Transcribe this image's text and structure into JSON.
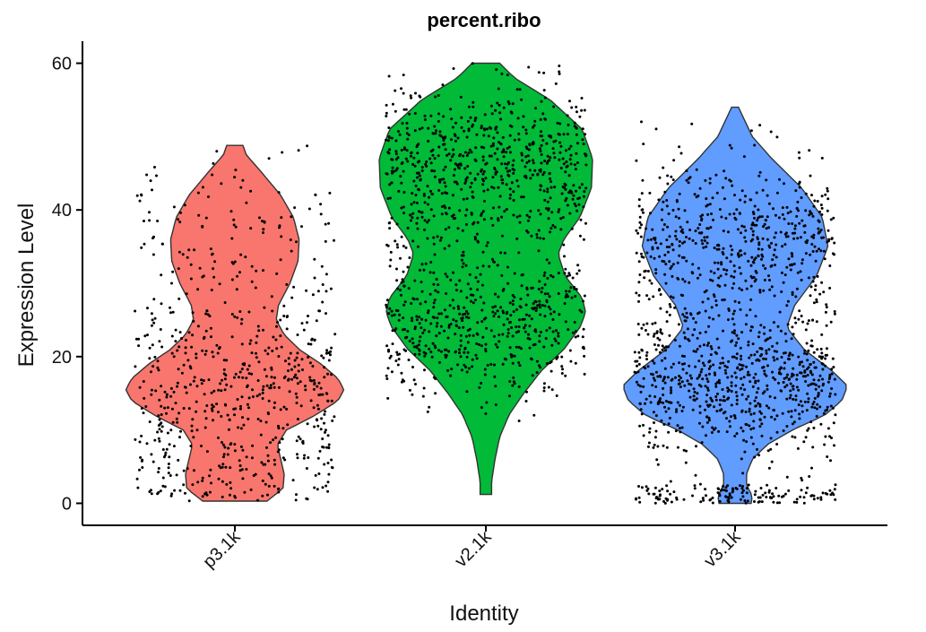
{
  "chart_data": {
    "type": "violin",
    "title": "percent.ribo",
    "xlabel": "Identity",
    "ylabel": "Expression Level",
    "ylim": [
      -3,
      63
    ],
    "yticks": [
      0,
      20,
      40,
      60
    ],
    "categories": [
      "p3.1k",
      "v2.1k",
      "v3.1k"
    ],
    "colors": [
      "#F8766D",
      "#00BA38",
      "#619CFF"
    ],
    "grid": false,
    "legend": "none",
    "series": [
      {
        "category": "p3.1k",
        "range": [
          0.3,
          48.8
        ],
        "density": [
          [
            0.3,
            0.28
          ],
          [
            2,
            0.42
          ],
          [
            4,
            0.43
          ],
          [
            6,
            0.4
          ],
          [
            8,
            0.37
          ],
          [
            10,
            0.45
          ],
          [
            12,
            0.7
          ],
          [
            14,
            0.9
          ],
          [
            15.5,
            0.95
          ],
          [
            17,
            0.9
          ],
          [
            19,
            0.75
          ],
          [
            21,
            0.56
          ],
          [
            23,
            0.43
          ],
          [
            25,
            0.36
          ],
          [
            27,
            0.38
          ],
          [
            30,
            0.48
          ],
          [
            33,
            0.55
          ],
          [
            36,
            0.56
          ],
          [
            39,
            0.51
          ],
          [
            42,
            0.4
          ],
          [
            45,
            0.24
          ],
          [
            47.5,
            0.1
          ],
          [
            48.8,
            0.07
          ]
        ],
        "n_points": 700,
        "point_mix": [
          [
            0.6,
            16,
            6
          ],
          [
            0.2,
            4,
            3
          ],
          [
            0.2,
            36,
            6
          ]
        ]
      },
      {
        "category": "v2.1k",
        "range": [
          1.2,
          60
        ],
        "density": [
          [
            1.2,
            0.05
          ],
          [
            3,
            0.05
          ],
          [
            6,
            0.08
          ],
          [
            9,
            0.12
          ],
          [
            12,
            0.2
          ],
          [
            15,
            0.33
          ],
          [
            18,
            0.48
          ],
          [
            21,
            0.68
          ],
          [
            24,
            0.82
          ],
          [
            26,
            0.87
          ],
          [
            28,
            0.84
          ],
          [
            31,
            0.69
          ],
          [
            34,
            0.63
          ],
          [
            36,
            0.68
          ],
          [
            39,
            0.82
          ],
          [
            43,
            0.92
          ],
          [
            47,
            0.93
          ],
          [
            51,
            0.84
          ],
          [
            55,
            0.56
          ],
          [
            58,
            0.25
          ],
          [
            60,
            0.12
          ]
        ],
        "n_points": 1200,
        "point_mix": [
          [
            0.45,
            24,
            5
          ],
          [
            0.55,
            46,
            6
          ]
        ]
      },
      {
        "category": "v3.1k",
        "range": [
          0,
          54
        ],
        "density": [
          [
            0,
            0.14
          ],
          [
            1,
            0.15
          ],
          [
            2.5,
            0.1
          ],
          [
            4,
            0.1
          ],
          [
            6,
            0.15
          ],
          [
            8,
            0.28
          ],
          [
            10,
            0.5
          ],
          [
            12,
            0.78
          ],
          [
            14,
            0.93
          ],
          [
            16,
            0.98
          ],
          [
            18,
            0.85
          ],
          [
            21,
            0.6
          ],
          [
            24,
            0.45
          ],
          [
            27,
            0.52
          ],
          [
            31,
            0.71
          ],
          [
            35,
            0.81
          ],
          [
            39,
            0.76
          ],
          [
            43,
            0.58
          ],
          [
            47,
            0.32
          ],
          [
            50,
            0.15
          ],
          [
            53,
            0.06
          ],
          [
            54,
            0.03
          ]
        ],
        "n_points": 1400,
        "point_mix": [
          [
            0.5,
            16,
            5
          ],
          [
            0.4,
            36,
            6
          ],
          [
            0.1,
            1,
            1
          ]
        ]
      }
    ]
  }
}
